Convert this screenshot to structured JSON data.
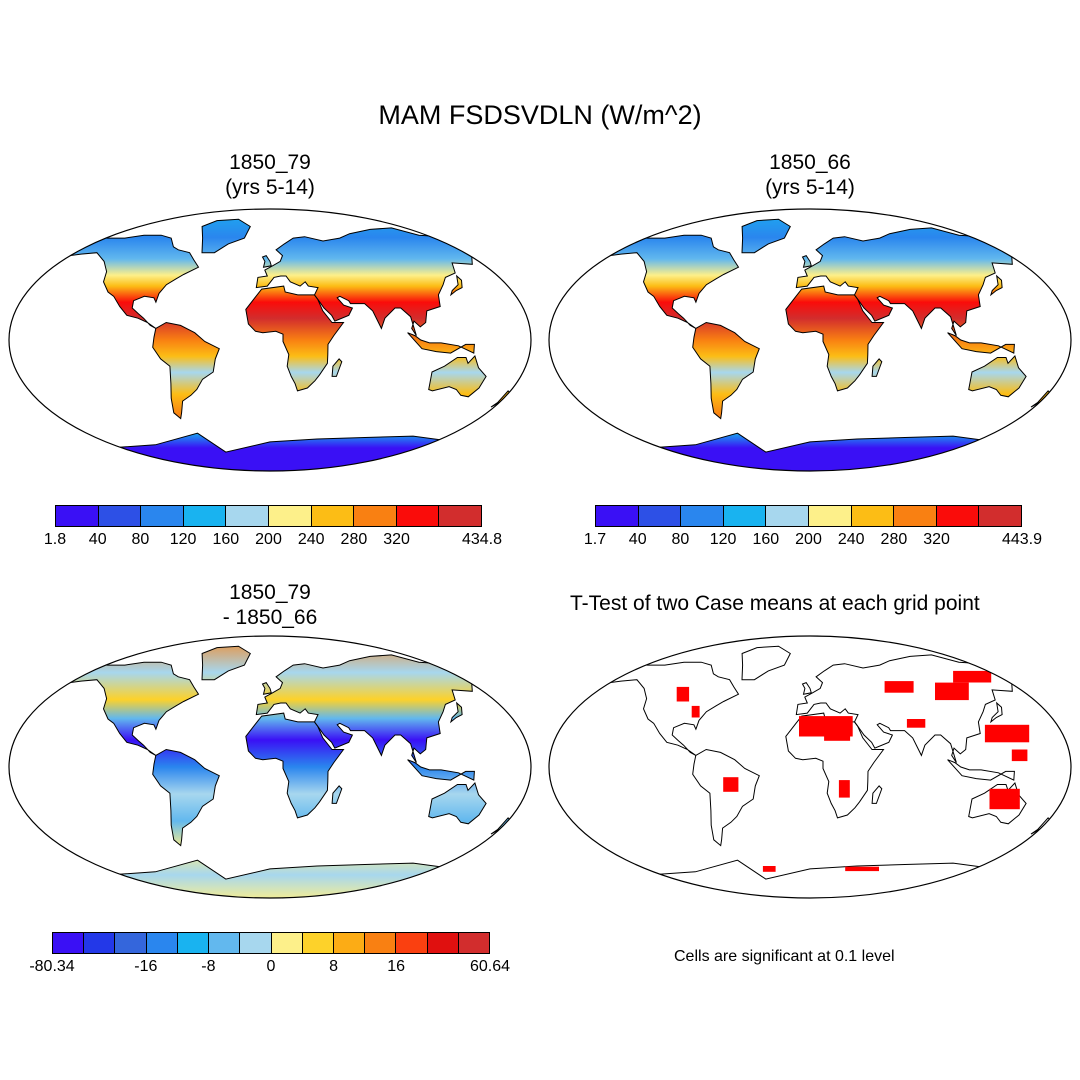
{
  "title": "MAM FSDSVDLN (W/m^2)",
  "panels": [
    {
      "title_line1": "1850_79",
      "title_line2": "(yrs 5-14)",
      "colorbar": {
        "colors": [
          "#3a10f5",
          "#2d50e6",
          "#2a86ee",
          "#19b3f0",
          "#a7d7ee",
          "#fdf08a",
          "#fcbd15",
          "#f98012",
          "#fa0c0a",
          "#d22d2d"
        ],
        "labels": [
          "1.8",
          "40",
          "80",
          "120",
          "160",
          "200",
          "240",
          "280",
          "320",
          "434.8"
        ]
      }
    },
    {
      "title_line1": "1850_66",
      "title_line2": "(yrs 5-14)",
      "colorbar": {
        "colors": [
          "#3a10f5",
          "#2d50e6",
          "#2a86ee",
          "#19b3f0",
          "#a7d7ee",
          "#fdf08a",
          "#fcbd15",
          "#f98012",
          "#fa0c0a",
          "#d22d2d"
        ],
        "labels": [
          "1.7",
          "40",
          "80",
          "120",
          "160",
          "200",
          "240",
          "280",
          "320",
          "443.9"
        ]
      }
    },
    {
      "title_line1": "1850_79",
      "title_line2": "- 1850_66",
      "colorbar": {
        "colors": [
          "#3a10f5",
          "#2338e8",
          "#3466dc",
          "#2a86ee",
          "#19b3f0",
          "#62b8ee",
          "#a7d7ee",
          "#fdf08a",
          "#fdd22a",
          "#fcac15",
          "#f98012",
          "#fa4010",
          "#e0100f",
          "#d22d2d"
        ],
        "labels": [
          "-80.34",
          "-16",
          "-8",
          "0",
          "8",
          "16",
          "60.64"
        ]
      }
    },
    {
      "title": "T-Test of two Case means at each grid point",
      "note": "Cells are significant at 0.1 level",
      "significance_color": "#ff0000"
    }
  ]
}
